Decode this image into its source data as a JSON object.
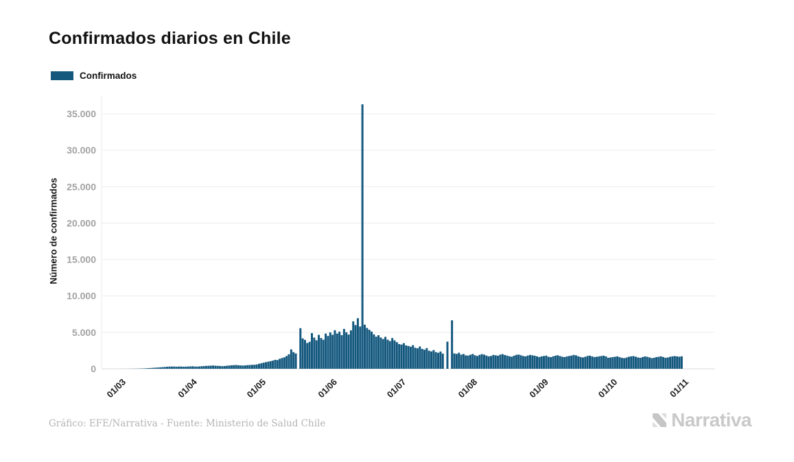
{
  "title": "Confirmados diarios en Chile",
  "legend": {
    "label": "Confirmados",
    "color": "#14587E"
  },
  "footer": {
    "credit": "Gráfico: EFE/Narrativa - Fuente: Ministerio de Salud Chile"
  },
  "logo": {
    "text": "Narrativa"
  },
  "chart_data": {
    "type": "bar",
    "title": "Confirmados diarios en Chile",
    "xlabel": "",
    "ylabel": "Número de confirmados",
    "ylim": [
      0,
      36500
    ],
    "grid": "horizontal",
    "legend_position": "top-left",
    "yticks": [
      0,
      5000,
      10000,
      15000,
      20000,
      25000,
      30000,
      35000
    ],
    "ytick_labels": [
      "0",
      "5.000",
      "10.000",
      "15.000",
      "20.000",
      "25.000",
      "30.000",
      "35.000"
    ],
    "xtick_labels": [
      "01/03",
      "01/04",
      "01/05",
      "01/06",
      "01/07",
      "01/08",
      "01/09",
      "01/10",
      "01/11"
    ],
    "xtick_indices": [
      0,
      31,
      61,
      92,
      122,
      153,
      184,
      214,
      245
    ],
    "series": [
      {
        "name": "Confirmados",
        "color": "#14587E",
        "values": [
          0,
          0,
          3,
          4,
          5,
          8,
          10,
          14,
          18,
          24,
          30,
          43,
          56,
          75,
          92,
          110,
          130,
          155,
          176,
          200,
          230,
          250,
          280,
          299,
          310,
          304,
          290,
          299,
          310,
          289,
          293,
          310,
          325,
          342,
          312,
          301,
          320,
          352,
          373,
          392,
          410,
          426,
          445,
          420,
          400,
          383,
          362,
          380,
          418,
          447,
          478,
          500,
          516,
          482,
          460,
          441,
          469,
          498,
          520,
          540,
          552,
          600,
          680,
          760,
          840,
          910,
          980,
          1050,
          1120,
          1228,
          1197,
          1373,
          1476,
          1578,
          1760,
          1992,
          2660,
          2278,
          2100,
          0,
          5570,
          4170,
          3964,
          3536,
          3709,
          4895,
          4276,
          3913,
          4654,
          4220,
          3985,
          4830,
          4500,
          4993,
          4664,
          5293,
          4830,
          5100,
          4620,
          5470,
          5014,
          4696,
          5275,
          6509,
          6000,
          6938,
          5800,
          36300,
          6050,
          5600,
          5355,
          5102,
          4725,
          4406,
          4608,
          4296,
          4084,
          4385,
          3990,
          3804,
          4216,
          3895,
          3650,
          3394,
          3320,
          3520,
          3210,
          3133,
          3025,
          3240,
          2890,
          2810,
          3058,
          2730,
          2616,
          2840,
          2475,
          2383,
          2566,
          2287,
          2198,
          2371,
          2082,
          0,
          3720,
          0,
          6657,
          2110,
          2042,
          2198,
          1940,
          2030,
          1840,
          1813,
          1920,
          2033,
          1856,
          1757,
          1905,
          2012,
          1940,
          1812,
          1704,
          1758,
          1902,
          1849,
          1795,
          1943,
          2009,
          1893,
          1804,
          1713,
          1656,
          1793,
          1912,
          1948,
          1857,
          1748,
          1705,
          1813,
          1902,
          1845,
          1795,
          1703,
          1610,
          1703,
          1752,
          1806,
          1646,
          1598,
          1704,
          1793,
          1856,
          1748,
          1650,
          1604,
          1698,
          1753,
          1810,
          1902,
          1843,
          1708,
          1612,
          1556,
          1648,
          1756,
          1804,
          1702,
          1613,
          1648,
          1705,
          1754,
          1796,
          1709,
          1512,
          1556,
          1608,
          1652,
          1702,
          1596,
          1498,
          1456,
          1543,
          1652,
          1704,
          1748,
          1656,
          1552,
          1506,
          1608,
          1698,
          1643,
          1556,
          1460,
          1512,
          1603,
          1648,
          1703,
          1612,
          1503,
          1556,
          1648,
          1702,
          1745,
          1698,
          1654,
          1712
        ]
      }
    ]
  }
}
